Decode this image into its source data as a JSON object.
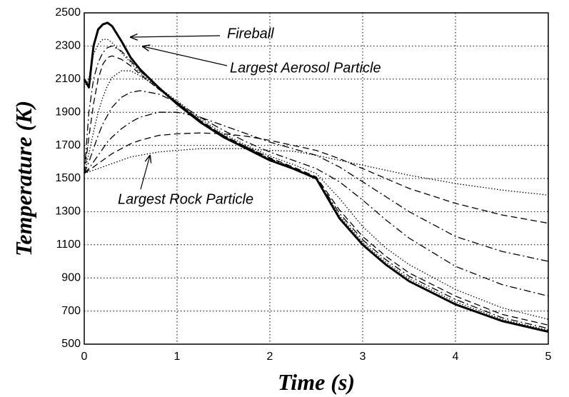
{
  "chart_data": {
    "type": "line",
    "xlabel": "Time (s)",
    "ylabel": "Temperature (K)",
    "x": [
      0,
      0.05,
      0.1,
      0.15,
      0.2,
      0.25,
      0.3,
      0.4,
      0.5,
      0.6,
      0.8,
      1,
      1.25,
      1.5,
      1.75,
      2,
      2.25,
      2.5,
      2.75,
      3,
      3.25,
      3.5,
      4,
      4.5,
      5
    ],
    "xlim": [
      0,
      5
    ],
    "xticks": [
      0,
      1,
      2,
      3,
      4,
      5
    ],
    "ylim": [
      500,
      2500
    ],
    "yticks": [
      500,
      700,
      900,
      1100,
      1300,
      1500,
      1700,
      1900,
      2100,
      2300,
      2500
    ],
    "grid": true,
    "annotations": [
      "Fireball",
      "Largest Aerosol Particle",
      "Largest Rock Particle"
    ],
    "series": [
      {
        "color": "#000000",
        "style": "solid",
        "values": [
          2100,
          2050,
          2300,
          2400,
          2430,
          2440,
          2420,
          2330,
          2230,
          2160,
          2050,
          1950,
          1840,
          1750,
          1680,
          1610,
          1560,
          1500,
          1260,
          1100,
          980,
          880,
          740,
          640,
          575
        ]
      },
      {
        "color": "#000000",
        "style": "dotted",
        "values": [
          2050,
          2100,
          2250,
          2310,
          2340,
          2340,
          2320,
          2260,
          2200,
          2140,
          2040,
          1950,
          1845,
          1755,
          1685,
          1615,
          1562,
          1502,
          1275,
          1115,
          995,
          895,
          755,
          650,
          585
        ]
      },
      {
        "color": "#000000",
        "style": "dashdot",
        "values": [
          1530,
          1900,
          2100,
          2200,
          2260,
          2290,
          2300,
          2270,
          2210,
          2150,
          2050,
          1960,
          1850,
          1760,
          1690,
          1620,
          1565,
          1505,
          1290,
          1130,
          1010,
          910,
          770,
          660,
          595
        ]
      },
      {
        "color": "#000000",
        "style": "dashed",
        "values": [
          1530,
          1750,
          1950,
          2100,
          2190,
          2230,
          2240,
          2220,
          2180,
          2130,
          2040,
          1960,
          1850,
          1760,
          1690,
          1625,
          1570,
          1510,
          1310,
          1150,
          1030,
          930,
          790,
          680,
          615
        ]
      },
      {
        "color": "#000000",
        "style": "dotted",
        "values": [
          1530,
          1650,
          1780,
          1900,
          1990,
          2060,
          2110,
          2150,
          2150,
          2120,
          2050,
          1970,
          1860,
          1770,
          1700,
          1635,
          1585,
          1530,
          1380,
          1210,
          1080,
          980,
          830,
          720,
          650
        ]
      },
      {
        "color": "#000000",
        "style": "dashdot",
        "values": [
          1530,
          1600,
          1680,
          1760,
          1830,
          1880,
          1930,
          1990,
          2020,
          2030,
          2010,
          1960,
          1870,
          1790,
          1720,
          1660,
          1610,
          1560,
          1480,
          1370,
          1250,
          1140,
          970,
          860,
          790
        ]
      },
      {
        "color": "#000000",
        "style": "dashdot",
        "values": [
          1530,
          1560,
          1600,
          1640,
          1680,
          1720,
          1750,
          1800,
          1840,
          1870,
          1900,
          1900,
          1870,
          1820,
          1770,
          1720,
          1680,
          1640,
          1570,
          1480,
          1390,
          1300,
          1150,
          1060,
          1000
        ]
      },
      {
        "color": "#000000",
        "style": "dashed",
        "values": [
          1530,
          1550,
          1570,
          1590,
          1610,
          1630,
          1650,
          1680,
          1710,
          1730,
          1760,
          1770,
          1775,
          1770,
          1755,
          1730,
          1700,
          1670,
          1620,
          1560,
          1500,
          1440,
          1350,
          1280,
          1230
        ]
      },
      {
        "color": "#000000",
        "style": "dotted",
        "values": [
          1530,
          1540,
          1550,
          1560,
          1570,
          1580,
          1590,
          1610,
          1630,
          1640,
          1660,
          1670,
          1680,
          1680,
          1680,
          1670,
          1665,
          1640,
          1610,
          1580,
          1550,
          1520,
          1470,
          1430,
          1400
        ]
      }
    ]
  }
}
